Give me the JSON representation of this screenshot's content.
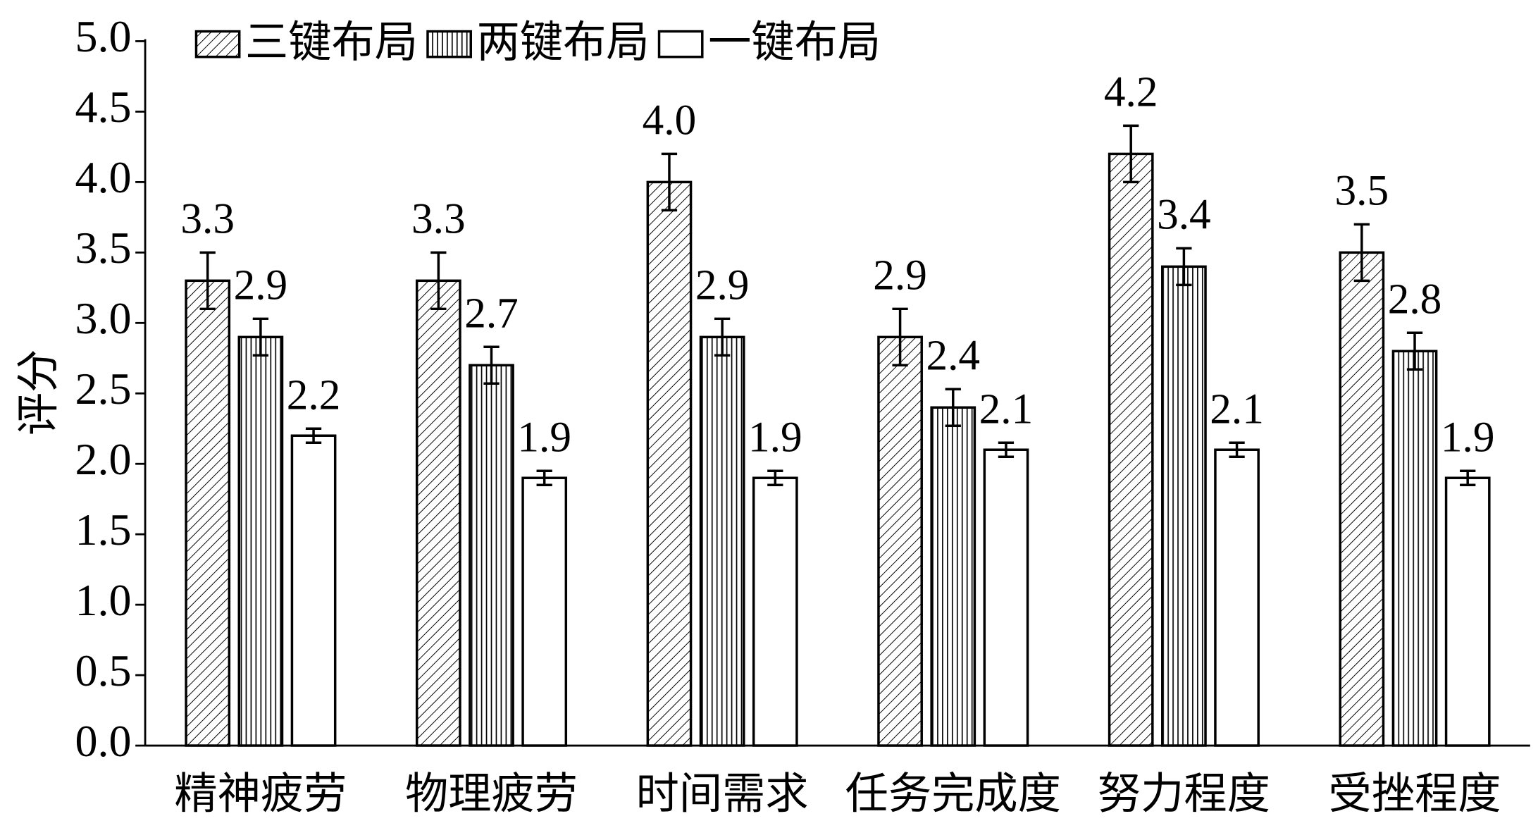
{
  "chart_data": {
    "type": "bar",
    "ylabel": "评分",
    "categories": [
      "精神疲劳",
      "物理疲劳",
      "时间需求",
      "任务完成度",
      "努力程度",
      "受挫程度"
    ],
    "series": [
      {
        "name": "三键布局",
        "color": "#000000",
        "hatch": "diagonal",
        "values": [
          3.3,
          3.3,
          4.0,
          2.9,
          4.2,
          3.5
        ],
        "value_labels": [
          "3.3",
          "3.3",
          "4.0",
          "2.9",
          "4.2",
          "3.5"
        ],
        "errors": [
          0.2,
          0.2,
          0.2,
          0.2,
          0.2,
          0.2
        ]
      },
      {
        "name": "两键布局",
        "color": "#000000",
        "hatch": "vertical",
        "values": [
          2.9,
          2.7,
          2.9,
          2.4,
          3.4,
          2.8
        ],
        "value_labels": [
          "2.9",
          "2.7",
          "2.9",
          "2.4",
          "3.4",
          "2.8"
        ],
        "errors": [
          0.13,
          0.13,
          0.13,
          0.13,
          0.13,
          0.13
        ]
      },
      {
        "name": "一键布局",
        "color": "#000000",
        "hatch": "none",
        "values": [
          2.2,
          1.9,
          1.9,
          2.1,
          2.1,
          1.9
        ],
        "value_labels": [
          "2.2",
          "1.9",
          "1.9",
          "2.1",
          "2.1",
          "1.9"
        ],
        "errors": [
          0.05,
          0.05,
          0.05,
          0.05,
          0.05,
          0.05
        ]
      }
    ],
    "ylim": [
      0,
      5
    ],
    "yticks": [
      {
        "value": 0,
        "label": "0.0"
      },
      0.5,
      {
        "value": 1,
        "label": "1.0"
      },
      1.5,
      {
        "value": 2,
        "label": "2.0"
      },
      2.5,
      {
        "value": 3,
        "label": "3.0"
      },
      3.5,
      {
        "value": 4,
        "label": "4.0"
      },
      4.5,
      {
        "value": 5,
        "label": "5.0"
      }
    ],
    "legend": "top",
    "grid": false
  }
}
